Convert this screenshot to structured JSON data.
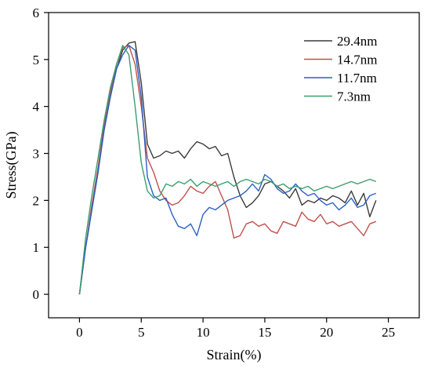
{
  "chart_data": {
    "type": "line",
    "title": "",
    "xlabel": "Strain(%)",
    "ylabel": "Stress(GPa)",
    "xlim": [
      -2.5,
      27.5
    ],
    "ylim": [
      -0.5,
      6
    ],
    "xticks": [
      0,
      5,
      10,
      15,
      20,
      25
    ],
    "yticks": [
      0,
      1,
      2,
      3,
      4,
      5,
      6
    ],
    "grid": false,
    "legend_position": "top-right",
    "series": [
      {
        "name": "29.4nm",
        "color": "#3a3a3a",
        "x": [
          0,
          0.5,
          1,
          1.5,
          2,
          2.5,
          3,
          3.5,
          4,
          4.5,
          5,
          5.5,
          6,
          6.5,
          7,
          7.5,
          8,
          8.5,
          9,
          9.5,
          10,
          10.5,
          11,
          11.5,
          12,
          12.5,
          13,
          13.5,
          14,
          14.5,
          15,
          15.5,
          16,
          16.5,
          17,
          17.5,
          18,
          18.5,
          19,
          19.5,
          20,
          20.5,
          21,
          21.5,
          22,
          22.5,
          23,
          23.5,
          24
        ],
        "y": [
          0,
          1.0,
          1.8,
          2.6,
          3.5,
          4.2,
          4.8,
          5.2,
          5.35,
          5.38,
          4.5,
          3.2,
          2.9,
          2.95,
          3.05,
          3.0,
          3.05,
          2.9,
          3.1,
          3.25,
          3.2,
          3.1,
          3.15,
          2.95,
          3.0,
          2.5,
          2.1,
          1.85,
          1.95,
          2.1,
          2.35,
          2.4,
          2.3,
          2.2,
          2.05,
          2.25,
          1.9,
          2.0,
          1.95,
          2.05,
          2.0,
          2.1,
          2.05,
          1.95,
          2.2,
          1.9,
          2.15,
          1.65,
          2.0
        ]
      },
      {
        "name": "14.7nm",
        "color": "#c0504d",
        "x": [
          0,
          0.5,
          1,
          1.5,
          2,
          2.5,
          3,
          3.5,
          4,
          4.5,
          5,
          5.5,
          6,
          6.5,
          7,
          7.5,
          8,
          8.5,
          9,
          9.5,
          10,
          10.5,
          11,
          11.5,
          12,
          12.5,
          13,
          13.5,
          14,
          14.5,
          15,
          15.5,
          16,
          16.5,
          17,
          17.5,
          18,
          18.5,
          19,
          19.5,
          20,
          20.5,
          21,
          21.5,
          22,
          22.5,
          23,
          23.5,
          24
        ],
        "y": [
          0,
          1.0,
          1.9,
          2.7,
          3.6,
          4.3,
          4.9,
          5.25,
          5.3,
          4.9,
          4.0,
          2.9,
          2.6,
          2.2,
          2.0,
          1.9,
          1.95,
          2.1,
          2.3,
          2.2,
          2.15,
          2.3,
          2.4,
          2.1,
          1.8,
          1.2,
          1.25,
          1.5,
          1.55,
          1.45,
          1.5,
          1.35,
          1.3,
          1.55,
          1.5,
          1.45,
          1.75,
          1.6,
          1.55,
          1.7,
          1.5,
          1.55,
          1.45,
          1.5,
          1.55,
          1.4,
          1.25,
          1.5,
          1.55
        ]
      },
      {
        "name": "11.7nm",
        "color": "#2b5fc7",
        "x": [
          0,
          0.5,
          1,
          1.5,
          2,
          2.5,
          3,
          3.5,
          4,
          4.5,
          5,
          5.5,
          6,
          6.5,
          7,
          7.5,
          8,
          8.5,
          9,
          9.5,
          10,
          10.5,
          11,
          11.5,
          12,
          12.5,
          13,
          13.5,
          14,
          14.5,
          15,
          15.5,
          16,
          16.5,
          17,
          17.5,
          18,
          18.5,
          19,
          19.5,
          20,
          20.5,
          21,
          21.5,
          22,
          22.5,
          23,
          23.5,
          24
        ],
        "y": [
          0,
          1.0,
          1.8,
          2.6,
          3.5,
          4.2,
          4.8,
          5.1,
          5.3,
          5.2,
          4.2,
          2.5,
          2.1,
          2.0,
          2.05,
          1.7,
          1.45,
          1.4,
          1.5,
          1.25,
          1.7,
          1.85,
          1.8,
          1.9,
          2.0,
          2.05,
          2.1,
          2.2,
          2.35,
          2.2,
          2.55,
          2.45,
          2.25,
          2.15,
          2.2,
          2.35,
          2.2,
          2.1,
          2.15,
          2.0,
          1.9,
          1.95,
          1.8,
          1.9,
          2.05,
          1.85,
          1.9,
          2.1,
          2.15
        ]
      },
      {
        "name": "7.3nm",
        "color": "#3a9e6a",
        "x": [
          0,
          0.5,
          1,
          1.5,
          2,
          2.5,
          3,
          3.5,
          4,
          4.5,
          5,
          5.5,
          6,
          6.5,
          7,
          7.5,
          8,
          8.5,
          9,
          9.5,
          10,
          10.5,
          11,
          11.5,
          12,
          12.5,
          13,
          13.5,
          14,
          14.5,
          15,
          15.5,
          16,
          16.5,
          17,
          17.5,
          18,
          18.5,
          19,
          19.5,
          20,
          20.5,
          21,
          21.5,
          22,
          22.5,
          23,
          23.5,
          24
        ],
        "y": [
          0,
          1.2,
          2.1,
          2.9,
          3.7,
          4.4,
          4.9,
          5.3,
          5.1,
          4.0,
          2.8,
          2.2,
          2.05,
          2.1,
          2.35,
          2.3,
          2.4,
          2.35,
          2.45,
          2.3,
          2.4,
          2.35,
          2.3,
          2.35,
          2.4,
          2.3,
          2.4,
          2.45,
          2.4,
          2.35,
          2.45,
          2.4,
          2.3,
          2.35,
          2.25,
          2.3,
          2.25,
          2.3,
          2.2,
          2.25,
          2.3,
          2.25,
          2.3,
          2.35,
          2.4,
          2.35,
          2.4,
          2.45,
          2.4
        ]
      }
    ]
  }
}
